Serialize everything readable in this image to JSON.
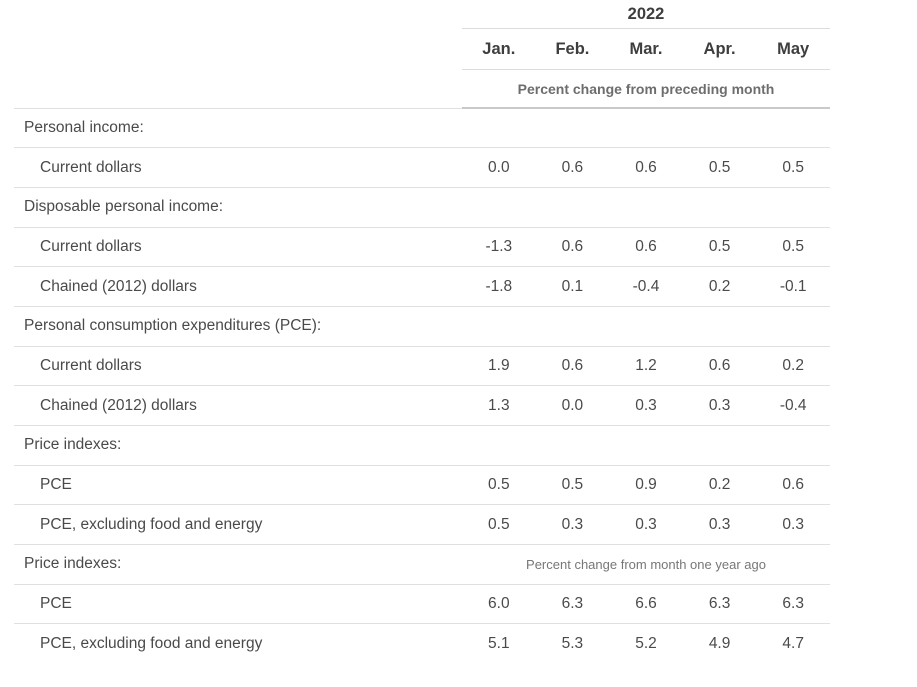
{
  "table": {
    "year": "2022",
    "months": [
      "Jan.",
      "Feb.",
      "Mar.",
      "Apr.",
      "May"
    ],
    "header_note": "Percent change from preceding month",
    "sections": [
      {
        "label": "Personal income:",
        "note": "",
        "rows": [
          {
            "label": "Current dollars",
            "values": [
              "0.0",
              "0.6",
              "0.6",
              "0.5",
              "0.5"
            ]
          }
        ]
      },
      {
        "label": "Disposable personal income:",
        "note": "",
        "rows": [
          {
            "label": "Current dollars",
            "values": [
              "-1.3",
              "0.6",
              "0.6",
              "0.5",
              "0.5"
            ]
          },
          {
            "label": "Chained (2012) dollars",
            "values": [
              "-1.8",
              "0.1",
              "-0.4",
              "0.2",
              "-0.1"
            ]
          }
        ]
      },
      {
        "label": "Personal consumption expenditures (PCE):",
        "note": "",
        "rows": [
          {
            "label": "Current dollars",
            "values": [
              "1.9",
              "0.6",
              "1.2",
              "0.6",
              "0.2"
            ]
          },
          {
            "label": "Chained (2012) dollars",
            "values": [
              "1.3",
              "0.0",
              "0.3",
              "0.3",
              "-0.4"
            ]
          }
        ]
      },
      {
        "label": "Price indexes:",
        "note": "",
        "rows": [
          {
            "label": "PCE",
            "values": [
              "0.5",
              "0.5",
              "0.9",
              "0.2",
              "0.6"
            ]
          },
          {
            "label": "PCE, excluding food and energy",
            "values": [
              "0.5",
              "0.3",
              "0.3",
              "0.3",
              "0.3"
            ]
          }
        ]
      },
      {
        "label": "Price indexes:",
        "note": "Percent change from month one year ago",
        "rows": [
          {
            "label": "PCE",
            "values": [
              "6.0",
              "6.3",
              "6.6",
              "6.3",
              "6.3"
            ]
          },
          {
            "label": "PCE, excluding food and energy",
            "values": [
              "5.1",
              "5.3",
              "5.2",
              "4.9",
              "4.7"
            ]
          }
        ]
      }
    ],
    "colors": {
      "text": "#4a4a4a",
      "header_text": "#3e3e3e",
      "note_text": "#6d6d6d",
      "thin_border": "#dcdcdc",
      "thick_border": "#c9c9c9"
    }
  }
}
